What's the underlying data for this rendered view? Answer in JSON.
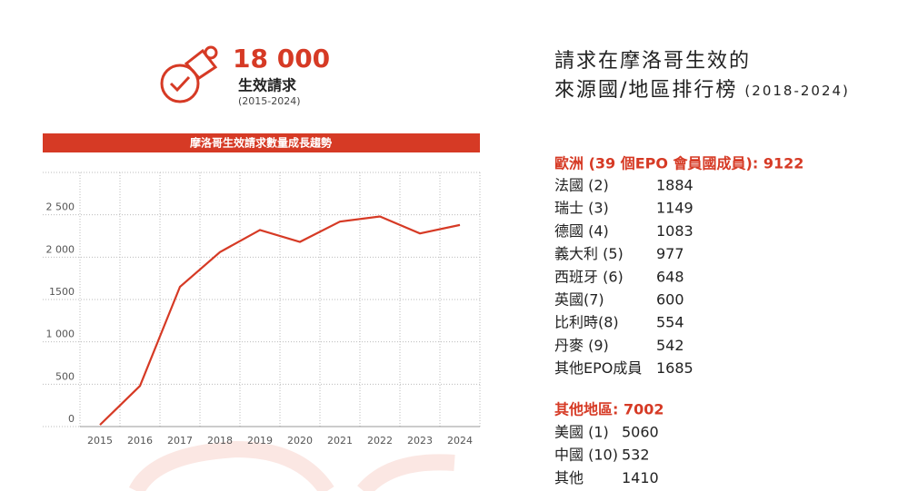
{
  "header": {
    "count": "18 000",
    "label": "生效請求",
    "period": "(2015-2024)"
  },
  "ranking": {
    "title_line1": "請求在摩洛哥生效的",
    "title_line2": "來源國/地區排行榜",
    "title_period": "(2018-2024)",
    "europe": {
      "heading": "歐洲 (39 個EPO 會員國成員): 9122",
      "rows": [
        [
          "法國 (2)",
          1884
        ],
        [
          "瑞士 (3)",
          1149
        ],
        [
          "德國 (4)",
          1083
        ],
        [
          "義大利 (5)",
          977
        ],
        [
          "西班牙 (6)",
          648
        ],
        [
          "英國(7)",
          600
        ],
        [
          "比利時(8)",
          554
        ],
        [
          "丹麥 (9)",
          542
        ],
        [
          "其他EPO成員",
          1685
        ]
      ]
    },
    "other": {
      "heading": "其他地區: 7002",
      "rows": [
        [
          "美國 (1)",
          5060
        ],
        [
          "中國 (10)",
          532
        ],
        [
          "其他",
          1410
        ]
      ]
    }
  },
  "chart_data": {
    "type": "line",
    "title": "摩洛哥生效請求數量成長趨勢",
    "categories": [
      "2015",
      "2016",
      "2017",
      "2018",
      "2019",
      "2020",
      "2021",
      "2022",
      "2023",
      "2024"
    ],
    "values": [
      20,
      480,
      1650,
      2060,
      2320,
      2180,
      2420,
      2480,
      2280,
      2380
    ],
    "color": "#d63a25",
    "ylim": [
      0,
      3000
    ],
    "yticks": [
      0,
      500,
      {
        "value": 1000,
        "label": "1 000"
      },
      1500,
      {
        "value": 2000,
        "label": "2 000"
      },
      {
        "value": 2500,
        "label": "2 500"
      }
    ],
    "grid": true
  }
}
